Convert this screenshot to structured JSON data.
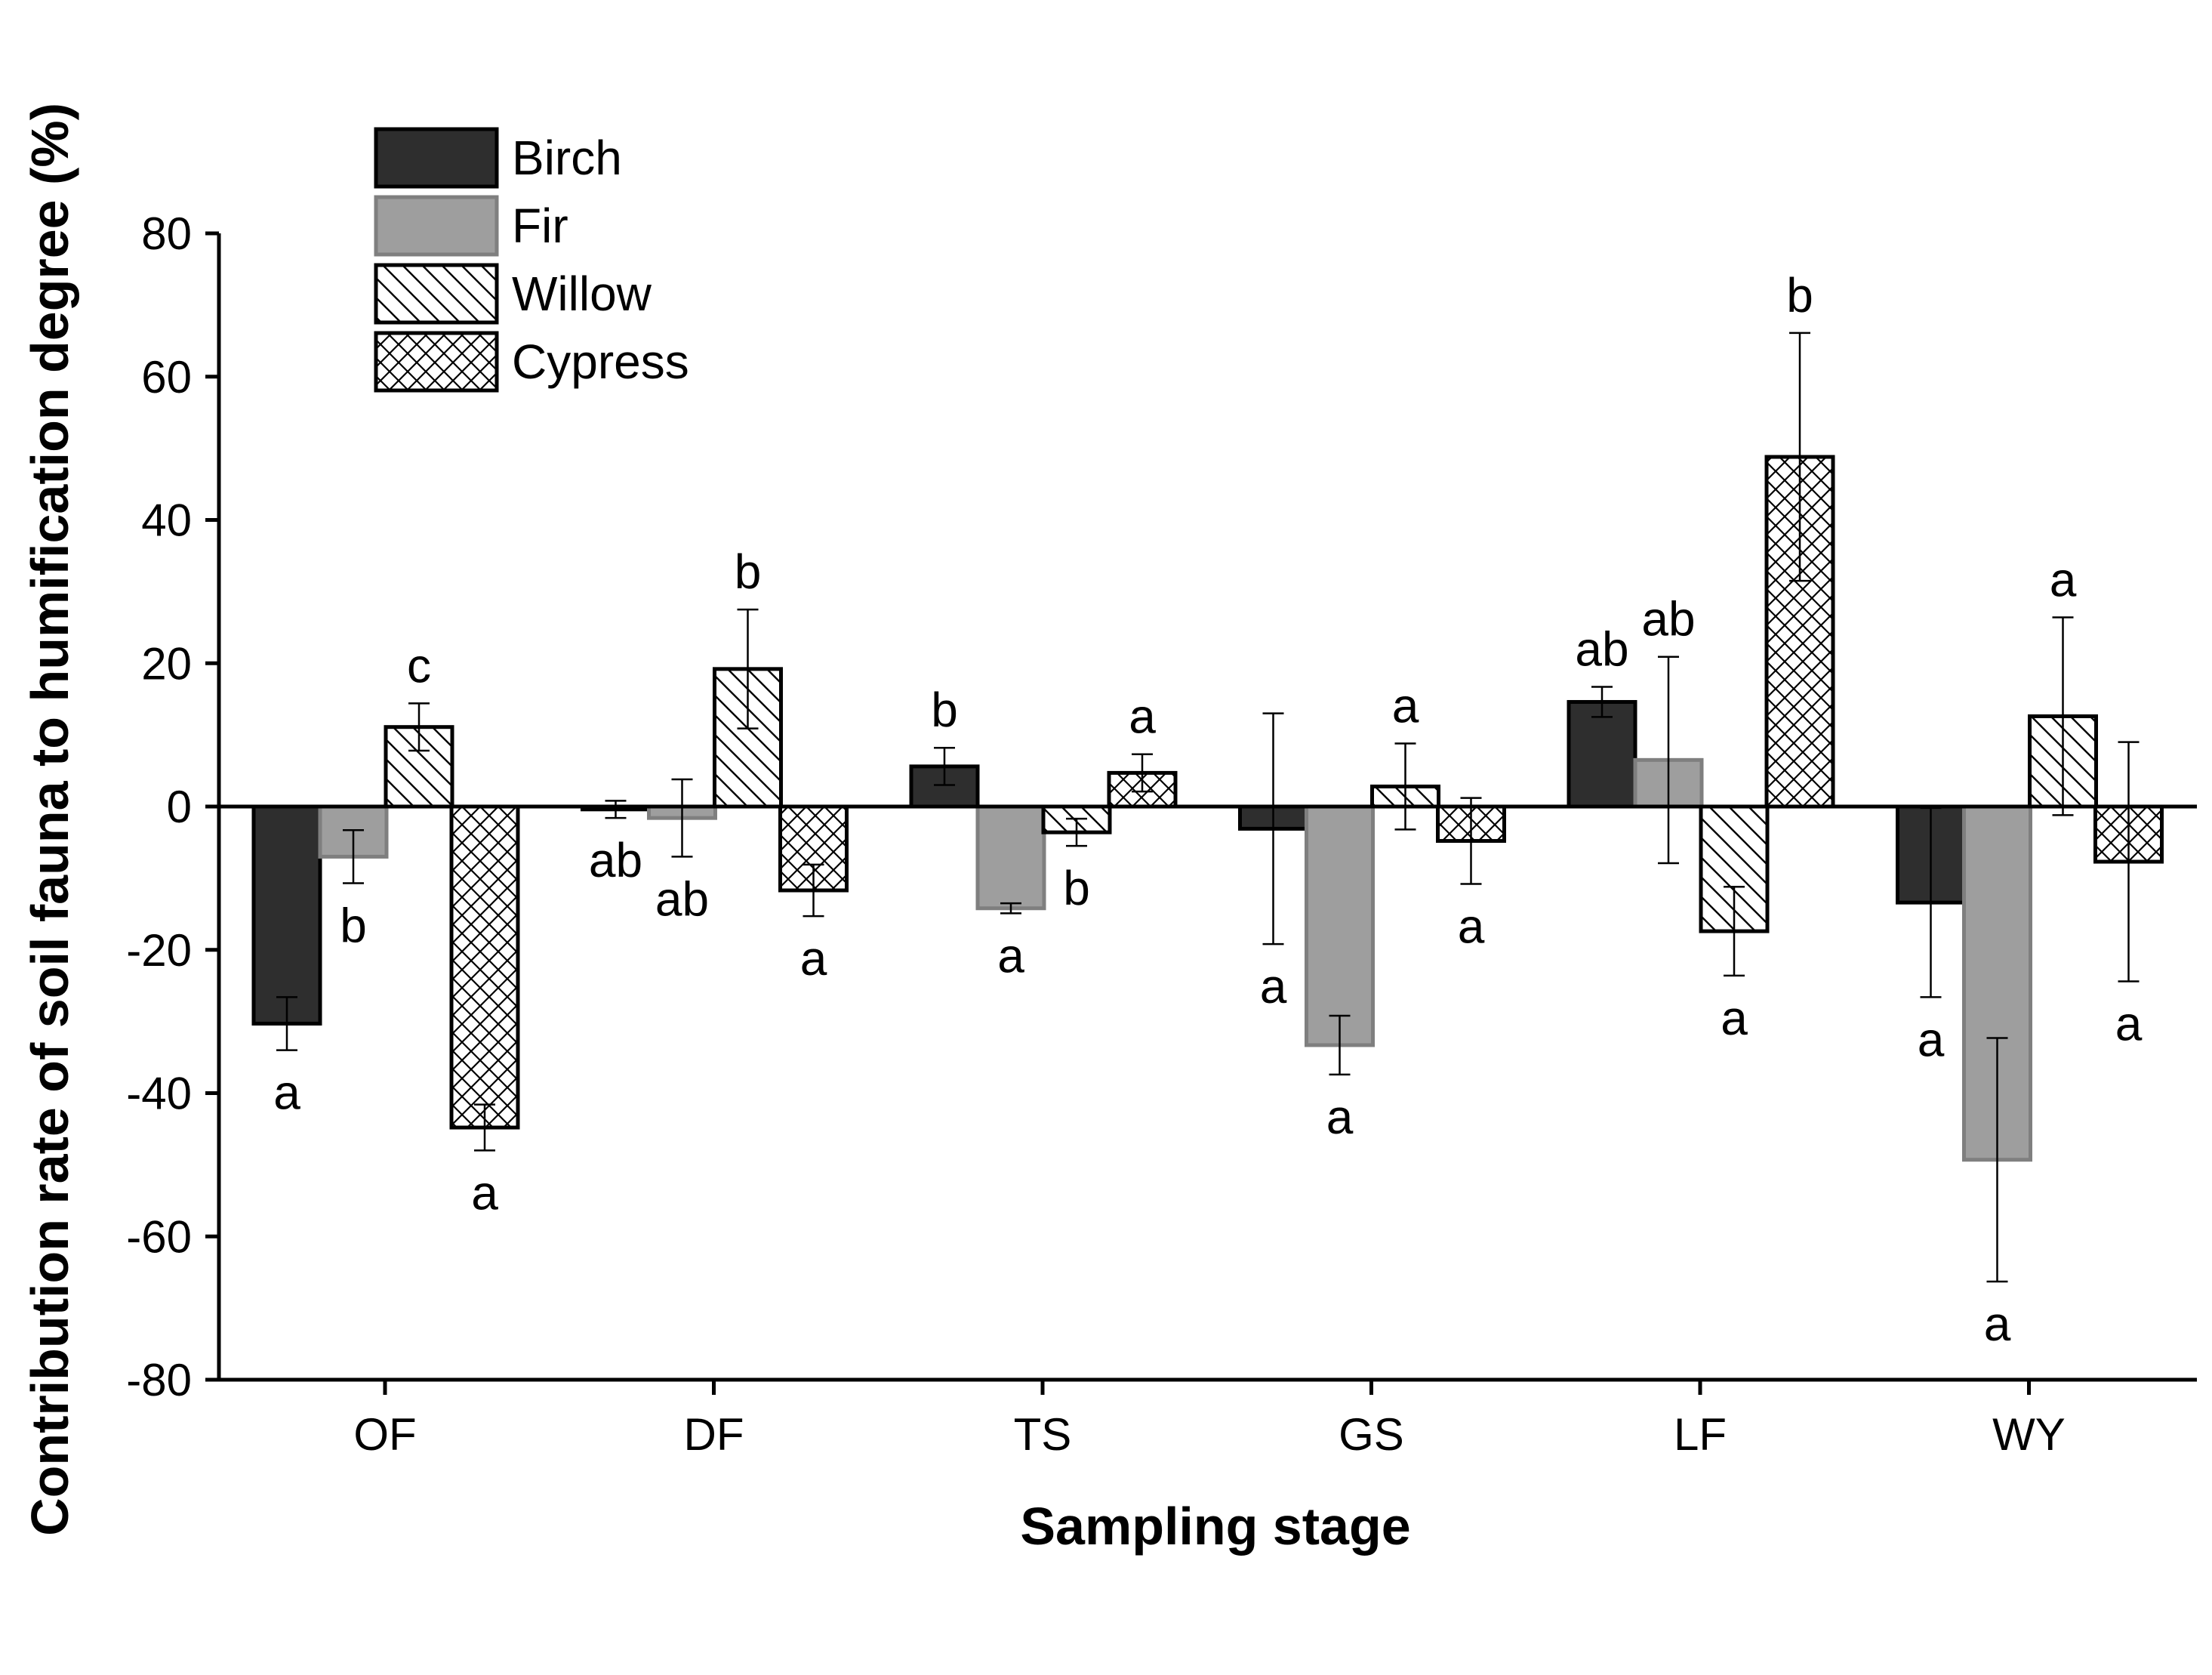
{
  "chart_data": {
    "type": "bar",
    "title": "",
    "xlabel": "Sampling stage",
    "ylabel": "Contribution rate of soil fauna to humification degree (%)",
    "ylim": [
      -80,
      80
    ],
    "yticks": [
      80,
      60,
      40,
      20,
      0,
      -20,
      -40,
      -60,
      -80
    ],
    "ytick_labels": [
      "80",
      "60",
      "40",
      "20",
      "0",
      "-20",
      "-40",
      "-60",
      "-80"
    ],
    "categories": [
      "OF",
      "DF",
      "TS",
      "GS",
      "LF",
      "WY"
    ],
    "legend_position": "top-left",
    "series": [
      {
        "name": "Birch",
        "color": "#2e2e2e",
        "edge": "#000000",
        "pattern": "solid",
        "values": [
          -30.3,
          -0.4,
          5.6,
          -3.1,
          14.6,
          -13.4
        ],
        "errors": [
          3.7,
          1.2,
          2.6,
          16.1,
          2.1,
          13.2
        ],
        "sig": [
          "a",
          "ab",
          "b",
          "a",
          "ab",
          "a"
        ]
      },
      {
        "name": "Fir",
        "color": "#9e9e9e",
        "edge": "#7f7f7f",
        "pattern": "solid",
        "values": [
          -7.0,
          -1.6,
          -14.2,
          -33.3,
          6.5,
          -49.3
        ],
        "errors": [
          3.7,
          5.4,
          0.7,
          4.1,
          14.4,
          17.0
        ],
        "sig": [
          "b",
          "ab",
          "a",
          "a",
          "ab",
          "a"
        ]
      },
      {
        "name": "Willow",
        "color": "#ffffff",
        "edge": "#000000",
        "pattern": "hatch",
        "values": [
          11.1,
          19.2,
          -3.6,
          2.8,
          -17.4,
          12.6
        ],
        "errors": [
          3.3,
          8.3,
          1.9,
          6.0,
          6.2,
          13.8
        ],
        "sig": [
          "c",
          "b",
          "b",
          "a",
          "a",
          "a"
        ]
      },
      {
        "name": "Cypress",
        "color": "#ffffff",
        "edge": "#000000",
        "pattern": "crosshatch",
        "values": [
          -44.8,
          -11.7,
          4.7,
          -4.8,
          48.8,
          -7.7
        ],
        "errors": [
          3.2,
          3.6,
          2.6,
          6.0,
          17.3,
          16.7
        ],
        "sig": [
          "a",
          "a",
          "a",
          "a",
          "b",
          "a"
        ]
      }
    ]
  }
}
